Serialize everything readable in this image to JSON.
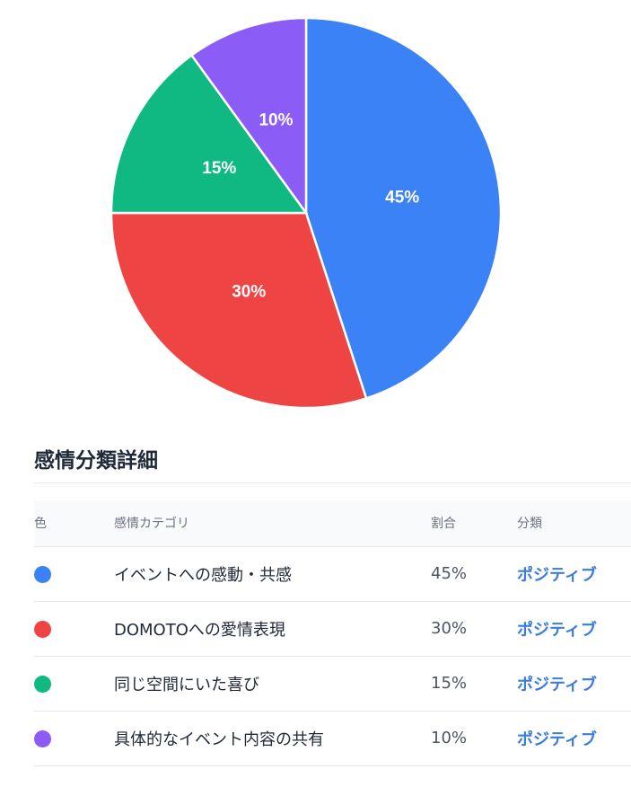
{
  "chart_data": {
    "type": "pie",
    "slices": [
      {
        "label": "イベントへの感動・共感",
        "value": 45,
        "color": "#3b82f6"
      },
      {
        "label": "DOMOTOへの愛情表現",
        "value": 30,
        "color": "#ef4444"
      },
      {
        "label": "同じ空間にいた喜び",
        "value": 15,
        "color": "#10b981"
      },
      {
        "label": "具体的なイベント内容の共有",
        "value": 10,
        "color": "#8b5cf6"
      }
    ],
    "data_labels": [
      "45%",
      "30%",
      "15%",
      "10%"
    ]
  },
  "section": {
    "title": "感情分類詳細"
  },
  "table": {
    "headers": {
      "color": "色",
      "category": "感情カテゴリ",
      "ratio": "割合",
      "classification": "分類"
    },
    "rows": [
      {
        "color": "#3b82f6",
        "category": "イベントへの感動・共感",
        "ratio": "45%",
        "classification": "ポジティブ"
      },
      {
        "color": "#ef4444",
        "category": "DOMOTOへの愛情表現",
        "ratio": "30%",
        "classification": "ポジティブ"
      },
      {
        "color": "#10b981",
        "category": "同じ空間にいた喜び",
        "ratio": "15%",
        "classification": "ポジティブ"
      },
      {
        "color": "#8b5cf6",
        "category": "具体的なイベント内容の共有",
        "ratio": "10%",
        "classification": "ポジティブ"
      }
    ]
  }
}
